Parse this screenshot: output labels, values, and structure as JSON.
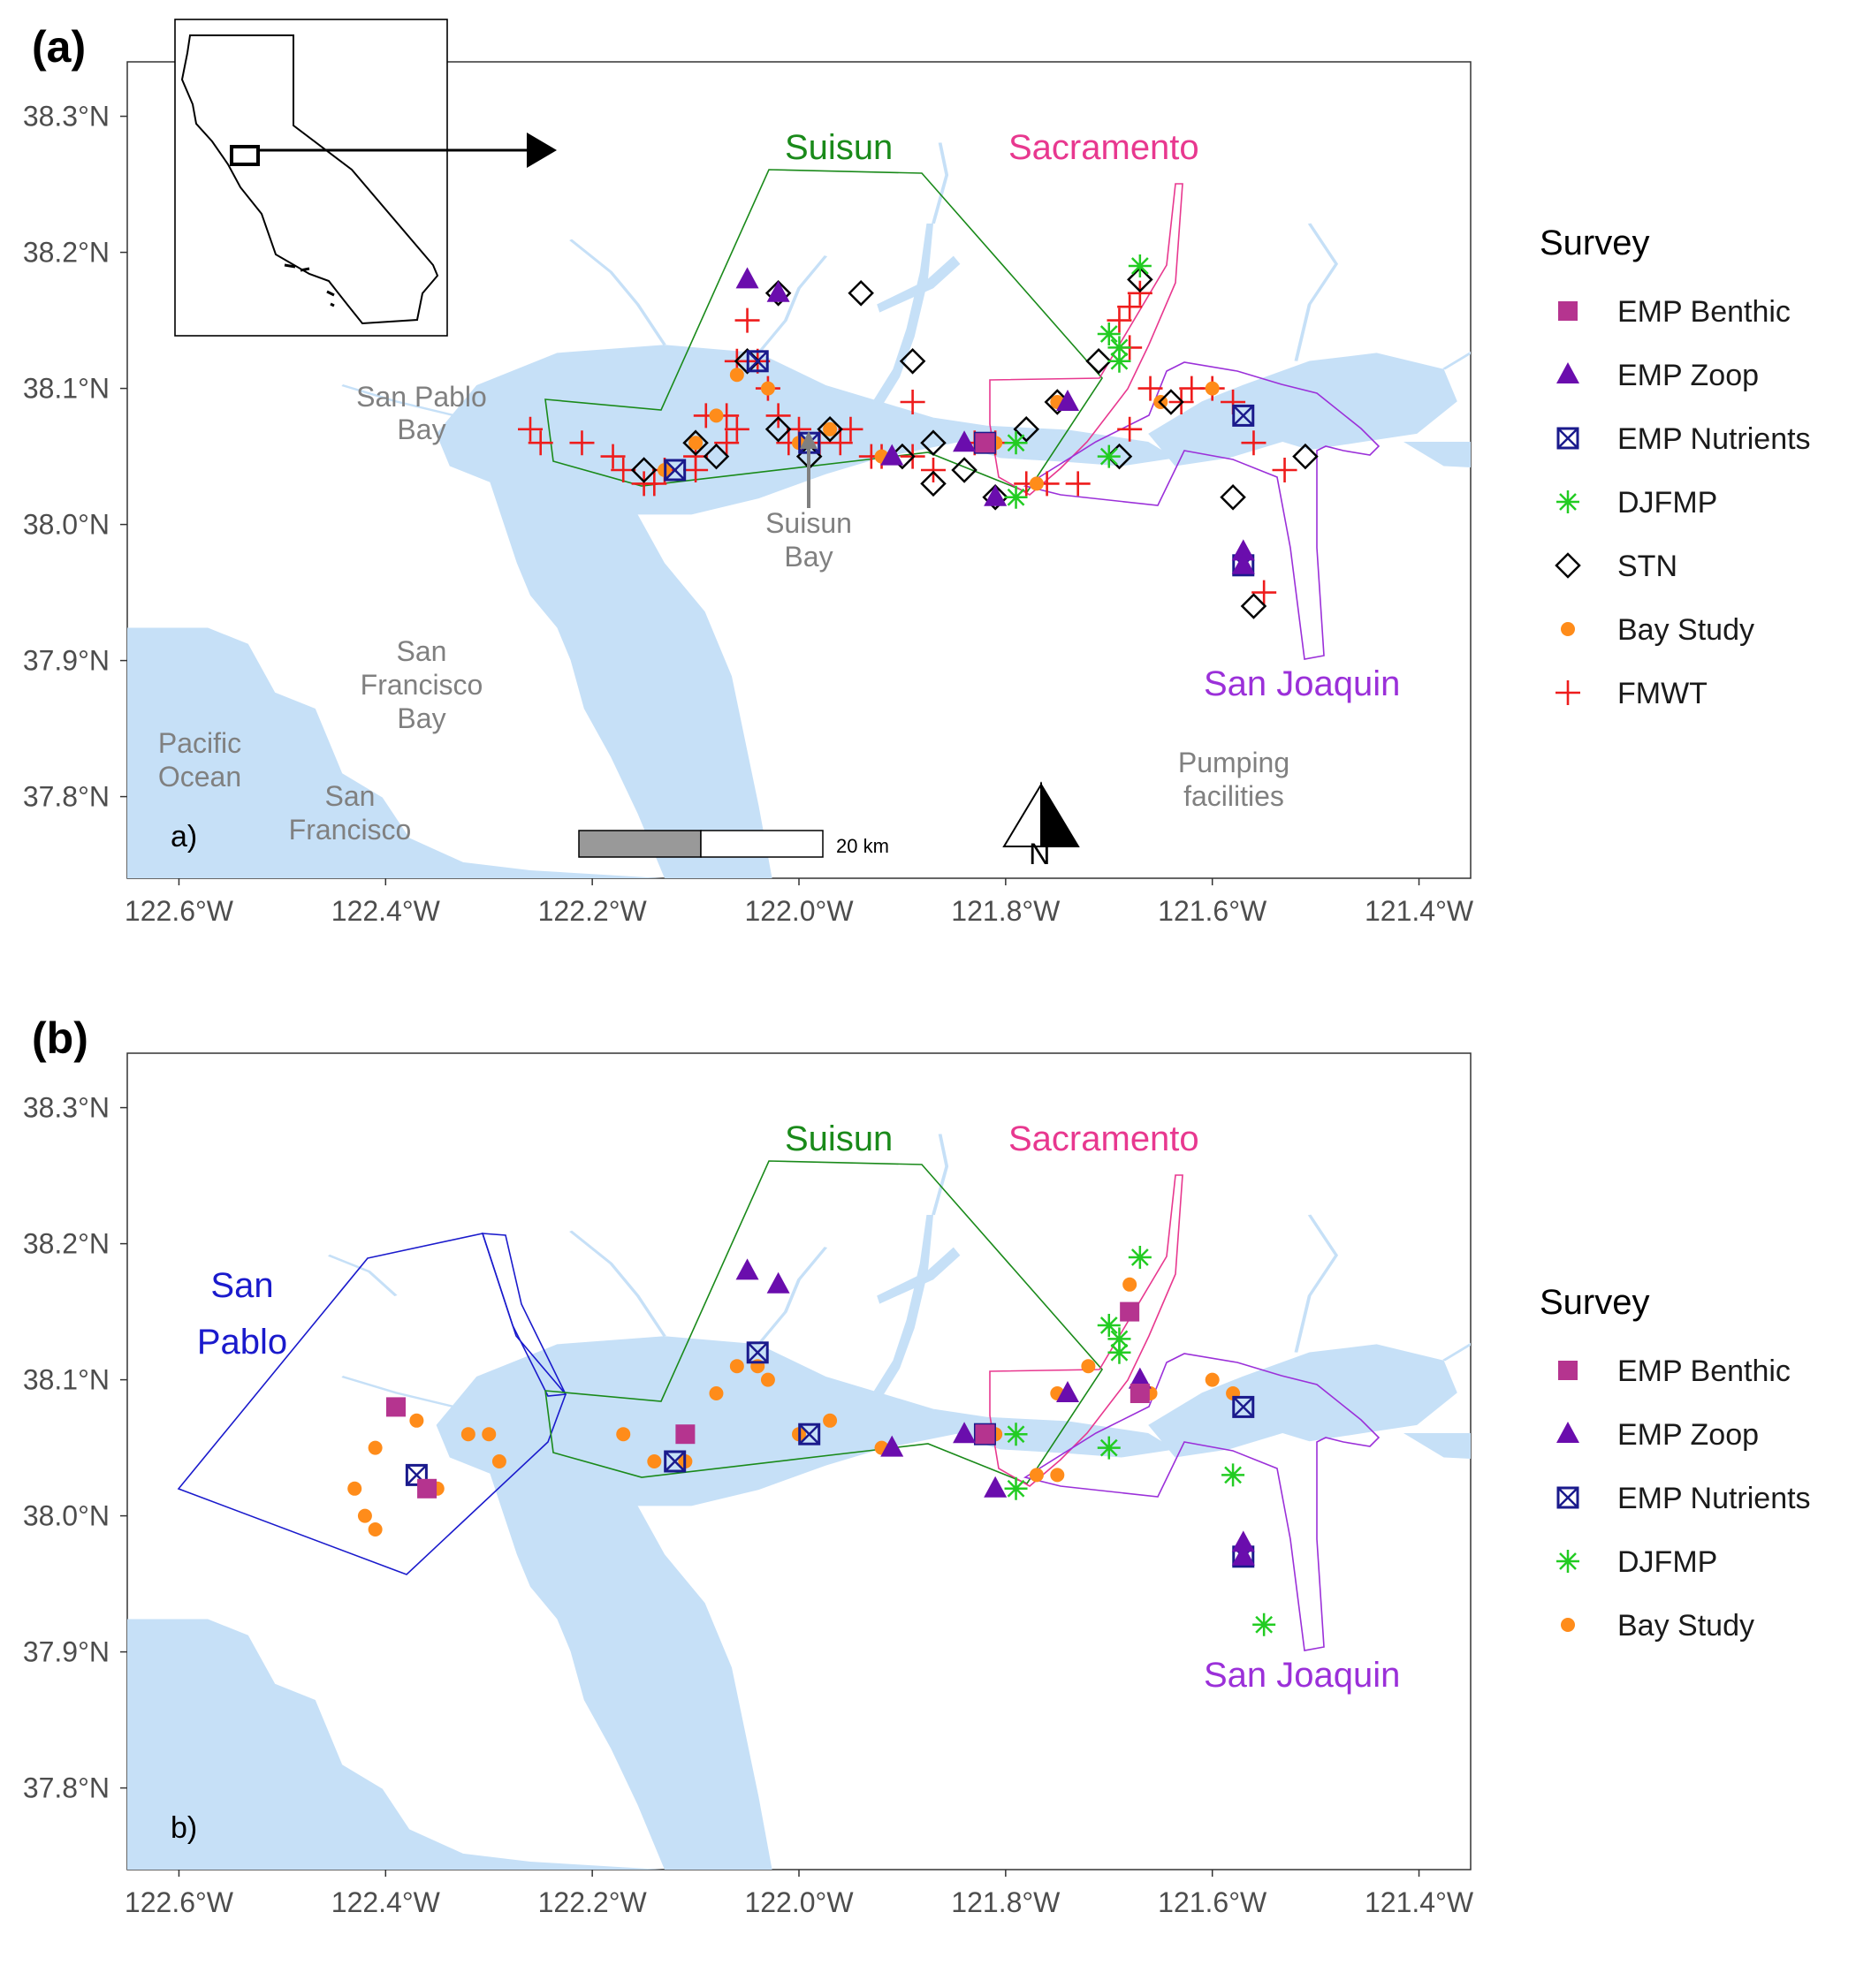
{
  "panels": [
    {
      "tag": "(a)",
      "corner_label": "a)",
      "lat_ticks": [
        "38.3°N",
        "38.2°N",
        "38.1°N",
        "38.0°N",
        "37.9°N",
        "37.8°N"
      ],
      "lon_ticks": [
        "122.6°W",
        "122.4°W",
        "122.2°W",
        "122.0°W",
        "121.8°W",
        "121.6°W",
        "121.4°W"
      ],
      "regions": {
        "suisun": "Suisun",
        "sacramento": "Sacramento",
        "san_joaquin": "San Joaquin"
      },
      "places": {
        "san_pablo_bay": [
          "San Pablo",
          "Bay"
        ],
        "san_francisco_bay": [
          "San",
          "Francisco",
          "Bay"
        ],
        "pacific": [
          "Pacific",
          "Ocean"
        ],
        "san_francisco": [
          "San",
          "Francisco"
        ],
        "suisun_bay": [
          "Suisun",
          "Bay"
        ],
        "pumping": [
          "Pumping",
          "facilities"
        ]
      },
      "scale_label": "20 km",
      "north_label": "N",
      "legend": {
        "title": "Survey",
        "items": [
          "EMP Benthic",
          "EMP Zoop",
          "EMP Nutrients",
          "DJFMP",
          "STN",
          "Bay Study",
          "FMWT"
        ]
      }
    },
    {
      "tag": "(b)",
      "corner_label": "b)",
      "lat_ticks": [
        "38.3°N",
        "38.2°N",
        "38.1°N",
        "38.0°N",
        "37.9°N",
        "37.8°N"
      ],
      "lon_ticks": [
        "122.6°W",
        "122.4°W",
        "122.2°W",
        "122.0°W",
        "121.8°W",
        "121.6°W",
        "121.4°W"
      ],
      "regions": {
        "san_pablo": [
          "San",
          "Pablo"
        ],
        "suisun": "Suisun",
        "sacramento": "Sacramento",
        "san_joaquin": "San Joaquin"
      },
      "legend": {
        "title": "Survey",
        "items": [
          "EMP Benthic",
          "EMP Zoop",
          "EMP Nutrients",
          "DJFMP",
          "Bay Study"
        ]
      }
    }
  ],
  "colors": {
    "water": "#c6e0f7",
    "suisun_region": "#1a8a1a",
    "sacramento_region": "#e8388f",
    "san_joaquin_region": "#9b30d9",
    "san_pablo_region": "#1a1acc",
    "emp_benthic": "#b5348f",
    "emp_zoop": "#6a0dad",
    "emp_nutrients": "#1a1a8c",
    "djfmp": "#22cc22",
    "stn": "#000000",
    "bay_study": "#ff8c1a",
    "fmwt": "#ee1c1c"
  },
  "stations": {
    "emp_benthic_a": [
      [
        -121.82,
        38.06
      ]
    ],
    "emp_zoop_a": [
      [
        -122.05,
        38.18
      ],
      [
        -122.02,
        38.17
      ],
      [
        -121.91,
        38.05
      ],
      [
        -121.84,
        38.06
      ],
      [
        -121.81,
        38.02
      ],
      [
        -121.74,
        38.09
      ],
      [
        -121.57,
        37.98
      ],
      [
        -121.57,
        37.97
      ]
    ],
    "emp_nutrients_a": [
      [
        -122.12,
        38.04
      ],
      [
        -122.04,
        38.12
      ],
      [
        -121.99,
        38.06
      ],
      [
        -121.82,
        38.06
      ],
      [
        -121.57,
        38.08
      ],
      [
        -121.57,
        37.97
      ]
    ],
    "djfmp_a": [
      [
        -121.67,
        38.19
      ],
      [
        -121.7,
        38.14
      ],
      [
        -121.69,
        38.13
      ],
      [
        -121.69,
        38.12
      ],
      [
        -121.79,
        38.06
      ],
      [
        -121.7,
        38.05
      ],
      [
        -121.79,
        38.02
      ]
    ],
    "stn_a": [
      [
        -122.02,
        38.17
      ],
      [
        -121.94,
        38.17
      ],
      [
        -121.89,
        38.12
      ],
      [
        -122.05,
        38.12
      ],
      [
        -121.67,
        38.18
      ],
      [
        -121.71,
        38.12
      ],
      [
        -122.02,
        38.07
      ],
      [
        -121.97,
        38.07
      ],
      [
        -122.1,
        38.06
      ],
      [
        -122.08,
        38.05
      ],
      [
        -122.15,
        38.04
      ],
      [
        -121.99,
        38.05
      ],
      [
        -121.9,
        38.05
      ],
      [
        -121.87,
        38.06
      ],
      [
        -121.87,
        38.03
      ],
      [
        -121.84,
        38.04
      ],
      [
        -121.78,
        38.07
      ],
      [
        -121.75,
        38.09
      ],
      [
        -121.64,
        38.09
      ],
      [
        -121.69,
        38.05
      ],
      [
        -121.58,
        38.02
      ],
      [
        -121.51,
        38.05
      ],
      [
        -121.56,
        37.94
      ],
      [
        -121.81,
        38.02
      ]
    ],
    "bay_study_a": [
      [
        -122.03,
        38.1
      ],
      [
        -122.1,
        38.06
      ],
      [
        -122.08,
        38.08
      ],
      [
        -122.13,
        38.04
      ],
      [
        -121.97,
        38.07
      ],
      [
        -122.0,
        38.06
      ],
      [
        -121.92,
        38.05
      ],
      [
        -121.81,
        38.06
      ],
      [
        -121.77,
        38.03
      ],
      [
        -121.75,
        38.09
      ],
      [
        -121.65,
        38.09
      ],
      [
        -121.6,
        38.1
      ],
      [
        -122.06,
        38.11
      ]
    ],
    "fmwt_a": [
      [
        -122.26,
        38.07
      ],
      [
        -122.25,
        38.06
      ],
      [
        -122.21,
        38.06
      ],
      [
        -122.18,
        38.05
      ],
      [
        -122.17,
        38.04
      ],
      [
        -122.15,
        38.03
      ],
      [
        -122.14,
        38.03
      ],
      [
        -122.13,
        38.04
      ],
      [
        -122.1,
        38.05
      ],
      [
        -122.09,
        38.08
      ],
      [
        -122.07,
        38.08
      ],
      [
        -122.06,
        38.12
      ],
      [
        -122.05,
        38.15
      ],
      [
        -122.06,
        38.07
      ],
      [
        -122.04,
        38.12
      ],
      [
        -122.03,
        38.1
      ],
      [
        -122.02,
        38.08
      ],
      [
        -122.01,
        38.06
      ],
      [
        -122.0,
        38.07
      ],
      [
        -121.98,
        38.06
      ],
      [
        -121.96,
        38.06
      ],
      [
        -121.95,
        38.07
      ],
      [
        -121.93,
        38.05
      ],
      [
        -121.92,
        38.05
      ],
      [
        -121.89,
        38.05
      ],
      [
        -121.89,
        38.09
      ],
      [
        -121.87,
        38.04
      ],
      [
        -121.83,
        38.06
      ],
      [
        -121.81,
        38.06
      ],
      [
        -121.78,
        38.03
      ],
      [
        -121.76,
        38.03
      ],
      [
        -121.73,
        38.03
      ],
      [
        -121.68,
        38.13
      ],
      [
        -121.69,
        38.15
      ],
      [
        -121.68,
        38.16
      ],
      [
        -121.67,
        38.17
      ],
      [
        -121.68,
        38.07
      ],
      [
        -121.66,
        38.1
      ],
      [
        -121.63,
        38.09
      ],
      [
        -121.62,
        38.1
      ],
      [
        -121.6,
        38.1
      ],
      [
        -121.58,
        38.09
      ],
      [
        -121.56,
        38.06
      ],
      [
        -121.53,
        38.04
      ],
      [
        -121.55,
        37.95
      ],
      [
        -122.1,
        38.04
      ],
      [
        -122.07,
        38.06
      ]
    ],
    "emp_benthic_b": [
      [
        -122.39,
        38.08
      ],
      [
        -122.36,
        38.02
      ],
      [
        -122.11,
        38.06
      ],
      [
        -121.68,
        38.15
      ],
      [
        -121.67,
        38.09
      ],
      [
        -121.82,
        38.06
      ]
    ],
    "emp_zoop_b": [
      [
        -122.05,
        38.18
      ],
      [
        -122.02,
        38.17
      ],
      [
        -121.91,
        38.05
      ],
      [
        -121.84,
        38.06
      ],
      [
        -121.81,
        38.02
      ],
      [
        -121.74,
        38.09
      ],
      [
        -121.67,
        38.1
      ],
      [
        -121.57,
        37.98
      ],
      [
        -121.57,
        37.97
      ]
    ],
    "emp_nutrients_b": [
      [
        -122.37,
        38.03
      ],
      [
        -122.12,
        38.04
      ],
      [
        -122.04,
        38.12
      ],
      [
        -121.99,
        38.06
      ],
      [
        -121.82,
        38.06
      ],
      [
        -121.57,
        38.08
      ],
      [
        -121.57,
        37.97
      ]
    ],
    "djfmp_b": [
      [
        -121.67,
        38.19
      ],
      [
        -121.7,
        38.14
      ],
      [
        -121.69,
        38.13
      ],
      [
        -121.69,
        38.12
      ],
      [
        -121.79,
        38.06
      ],
      [
        -121.7,
        38.05
      ],
      [
        -121.79,
        38.02
      ],
      [
        -121.58,
        38.03
      ],
      [
        -121.55,
        37.92
      ]
    ],
    "bay_study_b": [
      [
        -122.41,
        38.05
      ],
      [
        -122.37,
        38.07
      ],
      [
        -122.32,
        38.06
      ],
      [
        -122.3,
        38.06
      ],
      [
        -122.29,
        38.04
      ],
      [
        -122.35,
        38.02
      ],
      [
        -122.43,
        38.02
      ],
      [
        -122.42,
        38.0
      ],
      [
        -122.41,
        37.99
      ],
      [
        -122.17,
        38.06
      ],
      [
        -122.14,
        38.04
      ],
      [
        -122.11,
        38.04
      ],
      [
        -122.11,
        38.06
      ],
      [
        -122.08,
        38.09
      ],
      [
        -122.06,
        38.11
      ],
      [
        -122.04,
        38.11
      ],
      [
        -122.03,
        38.1
      ],
      [
        -122.0,
        38.06
      ],
      [
        -121.97,
        38.07
      ],
      [
        -121.92,
        38.05
      ],
      [
        -121.81,
        38.06
      ],
      [
        -121.77,
        38.03
      ],
      [
        -121.75,
        38.03
      ],
      [
        -121.75,
        38.09
      ],
      [
        -121.72,
        38.11
      ],
      [
        -121.68,
        38.17
      ],
      [
        -121.66,
        38.09
      ],
      [
        -121.6,
        38.1
      ],
      [
        -121.58,
        38.09
      ]
    ]
  }
}
